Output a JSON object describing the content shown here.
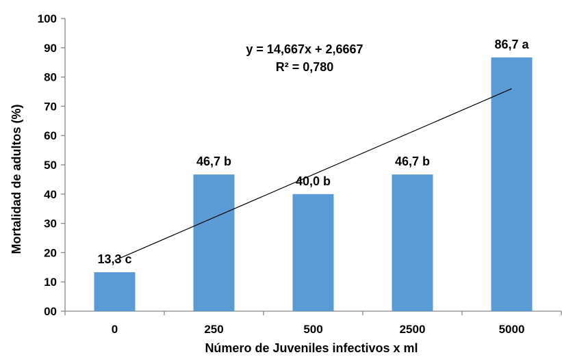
{
  "chart_data": {
    "type": "bar",
    "title": "",
    "xlabel": "Número de Juveniles infectivos x ml",
    "ylabel": "Mortalidad de adultos (%)",
    "categories": [
      "0",
      "250",
      "500",
      "2500",
      "5000"
    ],
    "values": [
      13.3,
      46.7,
      40.0,
      46.7,
      86.7
    ],
    "data_labels": [
      "13,3 c",
      "46,7 b",
      "40,0 b",
      "46,7 b",
      "86,7 a"
    ],
    "ylim": [
      0,
      100
    ],
    "yticks": [
      "00",
      "10",
      "20",
      "30",
      "40",
      "50",
      "60",
      "70",
      "80",
      "90",
      "100"
    ],
    "grid": false,
    "legend": "none",
    "bar_color": "#5b9bd5",
    "trendline": {
      "type": "linear",
      "slope": 14.667,
      "intercept": 2.6667,
      "equation_label": "y = 14,667x + 2,6667",
      "r2_label": "R² = 0,780",
      "color": "#000000"
    }
  }
}
